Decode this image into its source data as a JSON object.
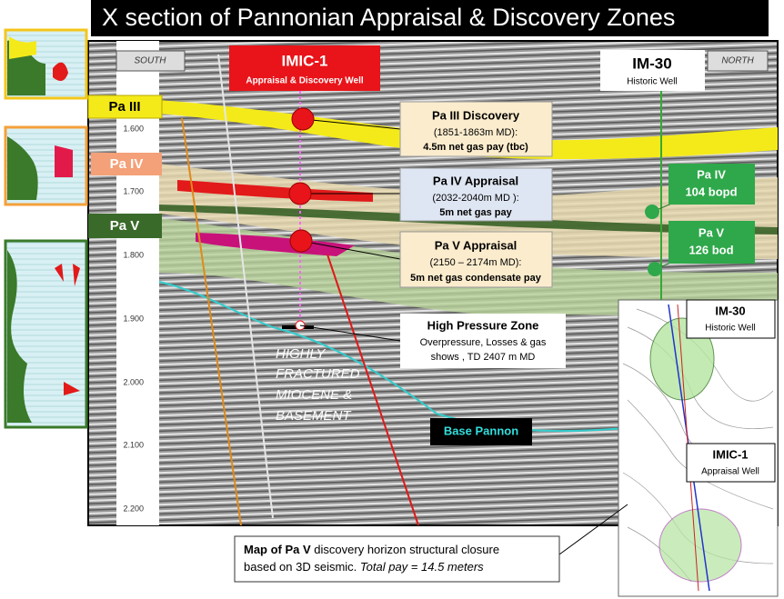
{
  "title": "X section of Pannonian Appraisal & Discovery Zones",
  "compass": {
    "south": "SOUTH",
    "north": "NORTH"
  },
  "wells": [
    {
      "name": "IMIC-1",
      "subtitle": "Appraisal & Discovery Well"
    },
    {
      "name": "IM-30",
      "subtitle": "Historic Well"
    }
  ],
  "horizons": [
    "Pa III",
    "Pa IV",
    "Pa V"
  ],
  "depth_ticks": [
    "1.600",
    "1.700",
    "1.800",
    "1.900",
    "2.000",
    "2.100",
    "2.200"
  ],
  "callouts": [
    {
      "title": "Pa III Discovery",
      "detail": "(1851-1863m MD):",
      "result": "4.5m net gas pay (tbc)"
    },
    {
      "title": "Pa IV  Appraisal",
      "detail": "(2032-2040m MD ):",
      "result": "5m net gas pay"
    },
    {
      "title": "Pa V  Appraisal",
      "detail": "(2150 – 2174m MD):",
      "result": "5m net gas condensate pay"
    }
  ],
  "high_pressure": {
    "title": "High Pressure Zone",
    "lines": [
      "Overpressure, Losses  & gas",
      "shows , TD 2407 m MD"
    ]
  },
  "fractured_label": [
    "HIGHLY",
    "FRACTURED",
    "MIOCENE &",
    "BASEMENT"
  ],
  "base_pannon": "Base Pannon",
  "im30_results": [
    {
      "zone": "Pa IV",
      "rate": "104 bopd"
    },
    {
      "zone": "Pa V",
      "rate": "126 bod"
    }
  ],
  "map_labels": [
    {
      "name": "IM-30",
      "subtitle": "Historic Well"
    },
    {
      "name": "IMIC-1",
      "subtitle": "Appraisal Well"
    }
  ],
  "map_caption": {
    "bold": "Map of Pa V",
    "text": " discovery horizon structural closure",
    "line2": "based on 3D seismic. ",
    "italic": "Total pay = 14.5 meters"
  }
}
